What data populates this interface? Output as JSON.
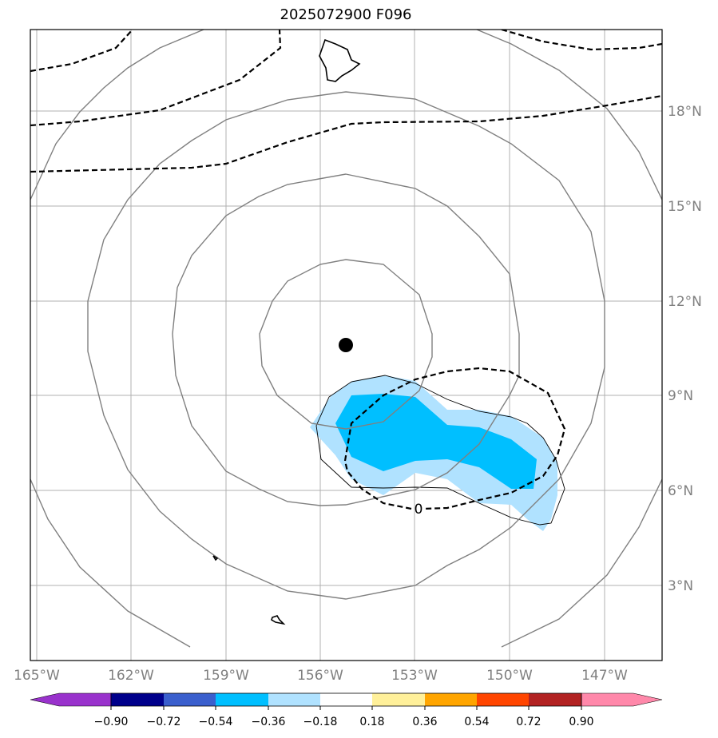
{
  "title": "2025072900 F096",
  "map": {
    "lon_labels": [
      "165°W",
      "162°W",
      "159°W",
      "156°W",
      "153°W",
      "150°W",
      "147°W"
    ],
    "lat_labels": [
      "18°N",
      "15°N",
      "12°N",
      "9°N",
      "6°N",
      "3°N"
    ],
    "contour_label": "0",
    "center_marker": "storm-center-dot"
  },
  "colorbar": {
    "tick_labels": [
      "−0.90",
      "−0.72",
      "−0.54",
      "−0.36",
      "−0.18",
      "0.18",
      "0.36",
      "0.54",
      "0.72",
      "0.90"
    ],
    "colors": [
      "#9932cc",
      "#00008b",
      "#3a5fcd",
      "#00bfff",
      "#b0e2ff",
      "#ffffff",
      "#fff09a",
      "#ffa500",
      "#ff4500",
      "#b22222",
      "#ff88aa"
    ]
  },
  "colors": {
    "grid": "#b0b0b0",
    "circle_contours": "#808080",
    "dashed_contours": "#000000",
    "fill_light": "#b0e2ff",
    "fill_dark": "#00bfff"
  }
}
